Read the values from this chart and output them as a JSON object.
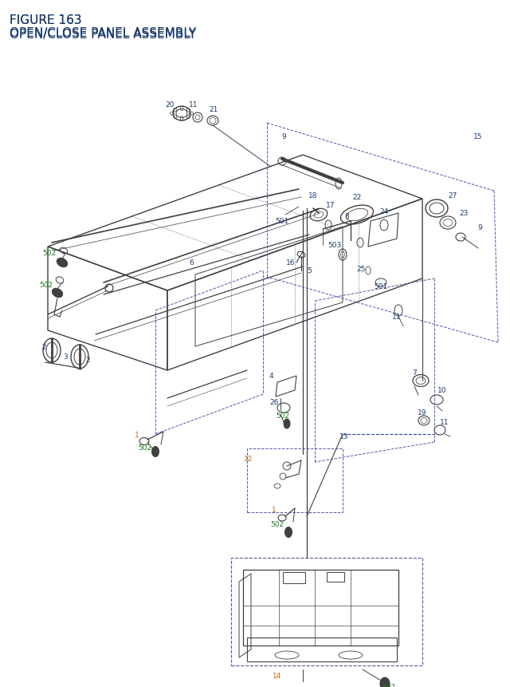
{
  "title_line1": "FIGURE 163",
  "title_line2": "OPEN/CLOSE PANEL ASSEMBLY",
  "title_color": "#1a3a6b",
  "title_fontsize": 11,
  "bg_color": "#ffffff",
  "fig_width": 6.4,
  "fig_height": 8.62,
  "gray": "#404040",
  "blue_dash": "#5555aa",
  "label_font": 6.5
}
